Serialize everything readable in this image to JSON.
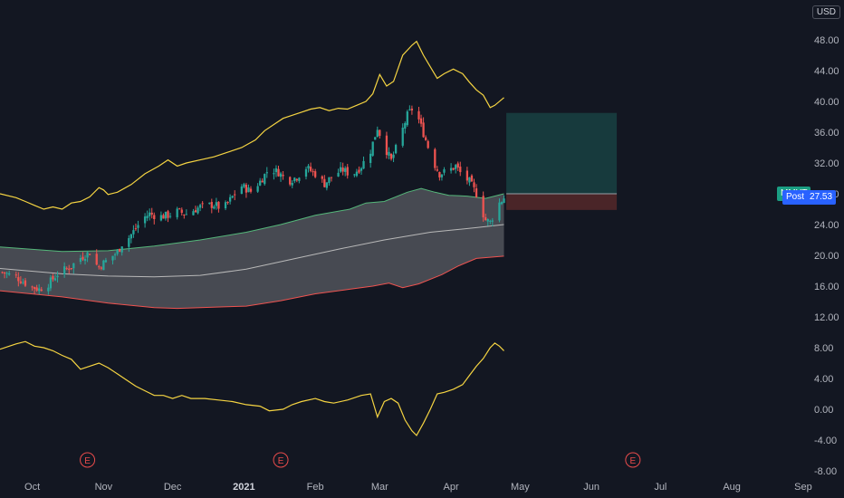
{
  "currency": "USD",
  "ticker_label": "MMYT",
  "post_label": "Post",
  "post_price": "27.53",
  "colors": {
    "background": "#131722",
    "up": "#26a69a",
    "down": "#ef5350",
    "keltner": "#f5d442",
    "band_fill": "#5a5c63",
    "band_upper": "#55b77a",
    "band_lower": "#ef5350",
    "basis": "#b8b8b8",
    "target_zone": "#173a3d",
    "stop_zone": "#4a2528",
    "earnings": "#e84b4b"
  },
  "earnings_marker": "E",
  "chart_data": {
    "type": "candlestick",
    "ylim": [
      -8,
      52
    ],
    "y_ticks": [
      "48.00",
      "44.00",
      "40.00",
      "36.00",
      "32.00",
      "28.00",
      "24.00",
      "20.00",
      "16.00",
      "12.00",
      "8.00",
      "4.00",
      "0.00",
      "-4.00",
      "-8.00"
    ],
    "x_ticks": [
      {
        "label": "Oct",
        "day": 7
      },
      {
        "label": "Nov",
        "day": 38
      },
      {
        "label": "Dec",
        "day": 68
      },
      {
        "label": "2021",
        "day": 99,
        "bold": true
      },
      {
        "label": "Feb",
        "day": 130
      },
      {
        "label": "Mar",
        "day": 158
      },
      {
        "label": "Apr",
        "day": 189
      },
      {
        "label": "May",
        "day": 219
      },
      {
        "label": "Jun",
        "day": 250
      },
      {
        "label": "Jul",
        "day": 280
      },
      {
        "label": "Aug",
        "day": 311
      },
      {
        "label": "Sep",
        "day": 342
      }
    ],
    "x_range_days": [
      -7,
      344
    ],
    "price_key_points": [
      [
        -6,
        17.8
      ],
      [
        0,
        17.2
      ],
      [
        6,
        16.0
      ],
      [
        10,
        15.6
      ],
      [
        14,
        16.3
      ],
      [
        18,
        17.6
      ],
      [
        24,
        18.6
      ],
      [
        28,
        19.7
      ],
      [
        32,
        20.4
      ],
      [
        34,
        19.0
      ],
      [
        36,
        18.5
      ],
      [
        40,
        19.5
      ],
      [
        44,
        20.4
      ],
      [
        46,
        21.5
      ],
      [
        49,
        22.3
      ],
      [
        52,
        23.5
      ],
      [
        55,
        24.8
      ],
      [
        58,
        25.4
      ],
      [
        62,
        25.0
      ],
      [
        66,
        25.2
      ],
      [
        70,
        25.7
      ],
      [
        74,
        25.4
      ],
      [
        80,
        26.3
      ],
      [
        86,
        26.6
      ],
      [
        90,
        26.0
      ],
      [
        94,
        27.6
      ],
      [
        98,
        29.0
      ],
      [
        102,
        28.3
      ],
      [
        106,
        29.6
      ],
      [
        110,
        31.3
      ],
      [
        114,
        30.8
      ],
      [
        118,
        29.6
      ],
      [
        122,
        30.2
      ],
      [
        126,
        31.4
      ],
      [
        130,
        30.6
      ],
      [
        134,
        29.3
      ],
      [
        138,
        30.5
      ],
      [
        142,
        31.1
      ],
      [
        146,
        30.4
      ],
      [
        150,
        31.6
      ],
      [
        154,
        33.6
      ],
      [
        157,
        36.6
      ],
      [
        160,
        34.2
      ],
      [
        163,
        32.3
      ],
      [
        166,
        34.6
      ],
      [
        170,
        38.2
      ],
      [
        172,
        39.0
      ],
      [
        175,
        37.6
      ],
      [
        178,
        35.0
      ],
      [
        181,
        32.3
      ],
      [
        184,
        30.6
      ],
      [
        188,
        31.0
      ],
      [
        191,
        31.6
      ],
      [
        194,
        30.3
      ],
      [
        197,
        29.6
      ],
      [
        200,
        28.0
      ],
      [
        202,
        26.1
      ],
      [
        204,
        24.6
      ],
      [
        206,
        24.3
      ],
      [
        208,
        25.6
      ],
      [
        210,
        26.8
      ],
      [
        212,
        27.5
      ]
    ],
    "series": [
      {
        "name": "bb_upper",
        "points": [
          [
            -7,
            21.1
          ],
          [
            20,
            20.5
          ],
          [
            40,
            20.6
          ],
          [
            60,
            21.2
          ],
          [
            80,
            22.0
          ],
          [
            100,
            23.0
          ],
          [
            115,
            24.0
          ],
          [
            130,
            25.2
          ],
          [
            145,
            26.0
          ],
          [
            152,
            26.8
          ],
          [
            160,
            27.0
          ],
          [
            170,
            28.2
          ],
          [
            176,
            28.7
          ],
          [
            182,
            28.2
          ],
          [
            188,
            27.8
          ],
          [
            196,
            27.7
          ],
          [
            204,
            27.4
          ],
          [
            212,
            28.0
          ]
        ]
      },
      {
        "name": "bb_basis",
        "points": [
          [
            -7,
            18.3
          ],
          [
            20,
            17.6
          ],
          [
            40,
            17.3
          ],
          [
            60,
            17.2
          ],
          [
            80,
            17.4
          ],
          [
            100,
            18.2
          ],
          [
            120,
            19.5
          ],
          [
            140,
            20.8
          ],
          [
            160,
            22.0
          ],
          [
            180,
            23.0
          ],
          [
            200,
            23.6
          ],
          [
            212,
            24.0
          ]
        ]
      },
      {
        "name": "bb_lower",
        "points": [
          [
            -7,
            15.4
          ],
          [
            20,
            14.6
          ],
          [
            40,
            13.8
          ],
          [
            60,
            13.2
          ],
          [
            70,
            13.1
          ],
          [
            90,
            13.3
          ],
          [
            100,
            13.4
          ],
          [
            115,
            14.1
          ],
          [
            130,
            15.0
          ],
          [
            145,
            15.6
          ],
          [
            155,
            16.0
          ],
          [
            162,
            16.4
          ],
          [
            168,
            15.8
          ],
          [
            175,
            16.3
          ],
          [
            185,
            17.5
          ],
          [
            192,
            18.6
          ],
          [
            200,
            19.6
          ],
          [
            212,
            19.9
          ]
        ]
      },
      {
        "name": "keltner_upper",
        "points": [
          [
            -7,
            28.0
          ],
          [
            0,
            27.5
          ],
          [
            4,
            27.0
          ],
          [
            8,
            26.5
          ],
          [
            12,
            26.0
          ],
          [
            16,
            26.3
          ],
          [
            20,
            26.0
          ],
          [
            24,
            26.8
          ],
          [
            28,
            27.0
          ],
          [
            32,
            27.6
          ],
          [
            36,
            28.8
          ],
          [
            38,
            28.5
          ],
          [
            40,
            27.9
          ],
          [
            44,
            28.2
          ],
          [
            50,
            29.2
          ],
          [
            56,
            30.6
          ],
          [
            62,
            31.6
          ],
          [
            66,
            32.4
          ],
          [
            70,
            31.6
          ],
          [
            74,
            32.0
          ],
          [
            80,
            32.4
          ],
          [
            86,
            32.8
          ],
          [
            92,
            33.4
          ],
          [
            98,
            34.0
          ],
          [
            104,
            35.0
          ],
          [
            108,
            36.2
          ],
          [
            112,
            37.0
          ],
          [
            116,
            37.8
          ],
          [
            120,
            38.2
          ],
          [
            124,
            38.6
          ],
          [
            128,
            39.0
          ],
          [
            132,
            39.2
          ],
          [
            136,
            38.8
          ],
          [
            140,
            39.1
          ],
          [
            144,
            39.0
          ],
          [
            148,
            39.5
          ],
          [
            152,
            40.0
          ],
          [
            155,
            41.0
          ],
          [
            158,
            43.5
          ],
          [
            161,
            42.0
          ],
          [
            164,
            42.6
          ],
          [
            168,
            46.0
          ],
          [
            172,
            47.3
          ],
          [
            174,
            47.8
          ],
          [
            177,
            46.0
          ],
          [
            180,
            44.5
          ],
          [
            183,
            43.0
          ],
          [
            186,
            43.6
          ],
          [
            190,
            44.2
          ],
          [
            194,
            43.6
          ],
          [
            197,
            42.5
          ],
          [
            200,
            41.5
          ],
          [
            203,
            40.8
          ],
          [
            206,
            39.2
          ],
          [
            208,
            39.5
          ],
          [
            212,
            40.5
          ]
        ]
      },
      {
        "name": "keltner_lower",
        "points": [
          [
            -7,
            7.8
          ],
          [
            0,
            8.5
          ],
          [
            4,
            8.8
          ],
          [
            8,
            8.2
          ],
          [
            12,
            8.0
          ],
          [
            16,
            7.6
          ],
          [
            20,
            7.0
          ],
          [
            24,
            6.5
          ],
          [
            28,
            5.2
          ],
          [
            32,
            5.6
          ],
          [
            36,
            6.0
          ],
          [
            40,
            5.4
          ],
          [
            44,
            4.6
          ],
          [
            48,
            3.8
          ],
          [
            52,
            3.0
          ],
          [
            56,
            2.4
          ],
          [
            60,
            1.8
          ],
          [
            64,
            1.8
          ],
          [
            68,
            1.4
          ],
          [
            72,
            1.8
          ],
          [
            76,
            1.4
          ],
          [
            82,
            1.4
          ],
          [
            88,
            1.2
          ],
          [
            94,
            1.0
          ],
          [
            100,
            0.6
          ],
          [
            106,
            0.4
          ],
          [
            110,
            -0.2
          ],
          [
            116,
            0.0
          ],
          [
            120,
            0.6
          ],
          [
            124,
            1.0
          ],
          [
            130,
            1.4
          ],
          [
            134,
            1.0
          ],
          [
            138,
            0.8
          ],
          [
            144,
            1.2
          ],
          [
            150,
            1.8
          ],
          [
            154,
            2.0
          ],
          [
            157,
            -1.0
          ],
          [
            160,
            1.0
          ],
          [
            163,
            1.4
          ],
          [
            166,
            0.8
          ],
          [
            169,
            -1.4
          ],
          [
            172,
            -2.8
          ],
          [
            174,
            -3.4
          ],
          [
            177,
            -1.8
          ],
          [
            180,
            0.0
          ],
          [
            183,
            2.0
          ],
          [
            186,
            2.2
          ],
          [
            190,
            2.6
          ],
          [
            194,
            3.2
          ],
          [
            197,
            4.4
          ],
          [
            200,
            5.6
          ],
          [
            203,
            6.6
          ],
          [
            206,
            8.0
          ],
          [
            208,
            8.6
          ],
          [
            210,
            8.2
          ],
          [
            212,
            7.6
          ]
        ]
      }
    ],
    "position": {
      "entry": 28.0,
      "stop": 25.9,
      "target": 38.5,
      "start_day": 213,
      "end_day": 261
    },
    "earnings_days": [
      31,
      115,
      268
    ]
  }
}
